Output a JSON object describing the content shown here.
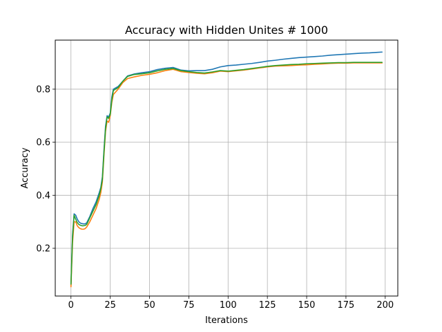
{
  "chart_data": {
    "type": "line",
    "title": "Accuracy with Hidden Unites # 1000",
    "xlabel": "Iterations",
    "ylabel": "Accuracy",
    "xlim": [
      -10,
      208
    ],
    "ylim": [
      0.02,
      0.985
    ],
    "xticks": [
      0,
      25,
      50,
      75,
      100,
      125,
      150,
      175,
      200
    ],
    "yticks": [
      0.2,
      0.4,
      0.6,
      0.8
    ],
    "ytick_labels": [
      "0.2",
      "0.4",
      "0.6",
      "0.8"
    ],
    "grid": true,
    "legend": "none",
    "series": [
      {
        "color": "#1f77b4",
        "points": [
          [
            0,
            0.06
          ],
          [
            1,
            0.25
          ],
          [
            2,
            0.33
          ],
          [
            3,
            0.325
          ],
          [
            4,
            0.31
          ],
          [
            5,
            0.3
          ],
          [
            6,
            0.295
          ],
          [
            7,
            0.293
          ],
          [
            8,
            0.292
          ],
          [
            9,
            0.292
          ],
          [
            10,
            0.296
          ],
          [
            12,
            0.32
          ],
          [
            14,
            0.35
          ],
          [
            16,
            0.375
          ],
          [
            18,
            0.41
          ],
          [
            19,
            0.43
          ],
          [
            20,
            0.47
          ],
          [
            21,
            0.57
          ],
          [
            22,
            0.66
          ],
          [
            23,
            0.7
          ],
          [
            24,
            0.695
          ],
          [
            25,
            0.71
          ],
          [
            26,
            0.77
          ],
          [
            27,
            0.8
          ],
          [
            30,
            0.81
          ],
          [
            33,
            0.83
          ],
          [
            36,
            0.85
          ],
          [
            40,
            0.857
          ],
          [
            45,
            0.862
          ],
          [
            50,
            0.866
          ],
          [
            55,
            0.874
          ],
          [
            60,
            0.879
          ],
          [
            65,
            0.882
          ],
          [
            70,
            0.872
          ],
          [
            75,
            0.869
          ],
          [
            80,
            0.87
          ],
          [
            85,
            0.87
          ],
          [
            90,
            0.875
          ],
          [
            95,
            0.884
          ],
          [
            100,
            0.889
          ],
          [
            105,
            0.891
          ],
          [
            110,
            0.894
          ],
          [
            115,
            0.897
          ],
          [
            120,
            0.901
          ],
          [
            125,
            0.906
          ],
          [
            130,
            0.909
          ],
          [
            135,
            0.913
          ],
          [
            140,
            0.916
          ],
          [
            145,
            0.919
          ],
          [
            150,
            0.921
          ],
          [
            155,
            0.923
          ],
          [
            160,
            0.925
          ],
          [
            165,
            0.928
          ],
          [
            170,
            0.93
          ],
          [
            175,
            0.932
          ],
          [
            180,
            0.934
          ],
          [
            185,
            0.936
          ],
          [
            190,
            0.937
          ],
          [
            195,
            0.939
          ],
          [
            198,
            0.94
          ]
        ]
      },
      {
        "color": "#ff7f0e",
        "points": [
          [
            0,
            0.055
          ],
          [
            1,
            0.22
          ],
          [
            2,
            0.3
          ],
          [
            3,
            0.3
          ],
          [
            4,
            0.285
          ],
          [
            5,
            0.278
          ],
          [
            6,
            0.274
          ],
          [
            7,
            0.272
          ],
          [
            8,
            0.272
          ],
          [
            9,
            0.274
          ],
          [
            10,
            0.28
          ],
          [
            12,
            0.3
          ],
          [
            14,
            0.325
          ],
          [
            16,
            0.35
          ],
          [
            18,
            0.385
          ],
          [
            19,
            0.41
          ],
          [
            20,
            0.45
          ],
          [
            21,
            0.55
          ],
          [
            22,
            0.64
          ],
          [
            23,
            0.68
          ],
          [
            24,
            0.675
          ],
          [
            25,
            0.7
          ],
          [
            26,
            0.75
          ],
          [
            27,
            0.78
          ],
          [
            30,
            0.8
          ],
          [
            33,
            0.825
          ],
          [
            36,
            0.84
          ],
          [
            40,
            0.846
          ],
          [
            45,
            0.852
          ],
          [
            50,
            0.856
          ],
          [
            55,
            0.862
          ],
          [
            60,
            0.87
          ],
          [
            65,
            0.875
          ],
          [
            70,
            0.866
          ],
          [
            75,
            0.863
          ],
          [
            80,
            0.86
          ],
          [
            85,
            0.858
          ],
          [
            90,
            0.862
          ],
          [
            95,
            0.868
          ],
          [
            100,
            0.866
          ],
          [
            105,
            0.869
          ],
          [
            110,
            0.872
          ],
          [
            115,
            0.876
          ],
          [
            120,
            0.88
          ],
          [
            125,
            0.884
          ],
          [
            130,
            0.887
          ],
          [
            135,
            0.888
          ],
          [
            140,
            0.889
          ],
          [
            145,
            0.891
          ],
          [
            150,
            0.892
          ],
          [
            155,
            0.894
          ],
          [
            160,
            0.895
          ],
          [
            165,
            0.897
          ],
          [
            170,
            0.898
          ],
          [
            175,
            0.898
          ],
          [
            180,
            0.899
          ],
          [
            185,
            0.899
          ],
          [
            190,
            0.899
          ],
          [
            195,
            0.899
          ],
          [
            198,
            0.899
          ]
        ]
      },
      {
        "color": "#2ca02c",
        "points": [
          [
            0,
            0.065
          ],
          [
            1,
            0.24
          ],
          [
            2,
            0.325
          ],
          [
            3,
            0.31
          ],
          [
            4,
            0.297
          ],
          [
            5,
            0.29
          ],
          [
            6,
            0.287
          ],
          [
            7,
            0.285
          ],
          [
            8,
            0.285
          ],
          [
            9,
            0.286
          ],
          [
            10,
            0.29
          ],
          [
            12,
            0.315
          ],
          [
            14,
            0.34
          ],
          [
            16,
            0.365
          ],
          [
            18,
            0.4
          ],
          [
            19,
            0.425
          ],
          [
            20,
            0.46
          ],
          [
            21,
            0.56
          ],
          [
            22,
            0.65
          ],
          [
            23,
            0.695
          ],
          [
            24,
            0.69
          ],
          [
            25,
            0.705
          ],
          [
            26,
            0.76
          ],
          [
            27,
            0.795
          ],
          [
            30,
            0.806
          ],
          [
            33,
            0.83
          ],
          [
            36,
            0.848
          ],
          [
            40,
            0.855
          ],
          [
            45,
            0.858
          ],
          [
            50,
            0.862
          ],
          [
            55,
            0.869
          ],
          [
            60,
            0.875
          ],
          [
            65,
            0.878
          ],
          [
            70,
            0.87
          ],
          [
            75,
            0.866
          ],
          [
            80,
            0.863
          ],
          [
            85,
            0.861
          ],
          [
            90,
            0.865
          ],
          [
            95,
            0.87
          ],
          [
            100,
            0.868
          ],
          [
            105,
            0.871
          ],
          [
            110,
            0.874
          ],
          [
            115,
            0.878
          ],
          [
            120,
            0.882
          ],
          [
            125,
            0.886
          ],
          [
            130,
            0.889
          ],
          [
            135,
            0.891
          ],
          [
            140,
            0.893
          ],
          [
            145,
            0.894
          ],
          [
            150,
            0.896
          ],
          [
            155,
            0.897
          ],
          [
            160,
            0.898
          ],
          [
            165,
            0.899
          ],
          [
            170,
            0.9
          ],
          [
            175,
            0.9
          ],
          [
            180,
            0.901
          ],
          [
            185,
            0.901
          ],
          [
            190,
            0.901
          ],
          [
            195,
            0.901
          ],
          [
            198,
            0.901
          ]
        ]
      }
    ]
  }
}
